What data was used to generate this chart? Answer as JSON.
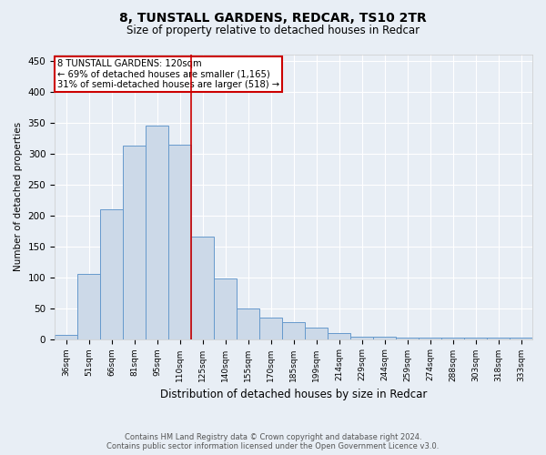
{
  "title": "8, TUNSTALL GARDENS, REDCAR, TS10 2TR",
  "subtitle": "Size of property relative to detached houses in Redcar",
  "xlabel": "Distribution of detached houses by size in Redcar",
  "ylabel": "Number of detached properties",
  "categories": [
    "36sqm",
    "51sqm",
    "66sqm",
    "81sqm",
    "95sqm",
    "110sqm",
    "125sqm",
    "140sqm",
    "155sqm",
    "170sqm",
    "185sqm",
    "199sqm",
    "214sqm",
    "229sqm",
    "244sqm",
    "259sqm",
    "274sqm",
    "288sqm",
    "303sqm",
    "318sqm",
    "333sqm"
  ],
  "values": [
    7,
    105,
    210,
    313,
    345,
    315,
    165,
    98,
    50,
    35,
    28,
    18,
    9,
    4,
    4,
    2,
    2,
    2,
    2,
    2,
    2
  ],
  "bar_color": "#ccd9e8",
  "bar_edge_color": "#6699cc",
  "background_color": "#e8eef5",
  "grid_color": "#ffffff",
  "annotation_box_text": [
    "8 TUNSTALL GARDENS: 120sqm",
    "← 69% of detached houses are smaller (1,165)",
    "31% of semi-detached houses are larger (518) →"
  ],
  "annotation_box_color": "#ffffff",
  "annotation_box_edge_color": "#cc0000",
  "red_line_color": "#cc0000",
  "red_line_x": 5.5,
  "footer_line1": "Contains HM Land Registry data © Crown copyright and database right 2024.",
  "footer_line2": "Contains public sector information licensed under the Open Government Licence v3.0.",
  "ylim": [
    0,
    460
  ],
  "yticks": [
    0,
    50,
    100,
    150,
    200,
    250,
    300,
    350,
    400,
    450
  ]
}
